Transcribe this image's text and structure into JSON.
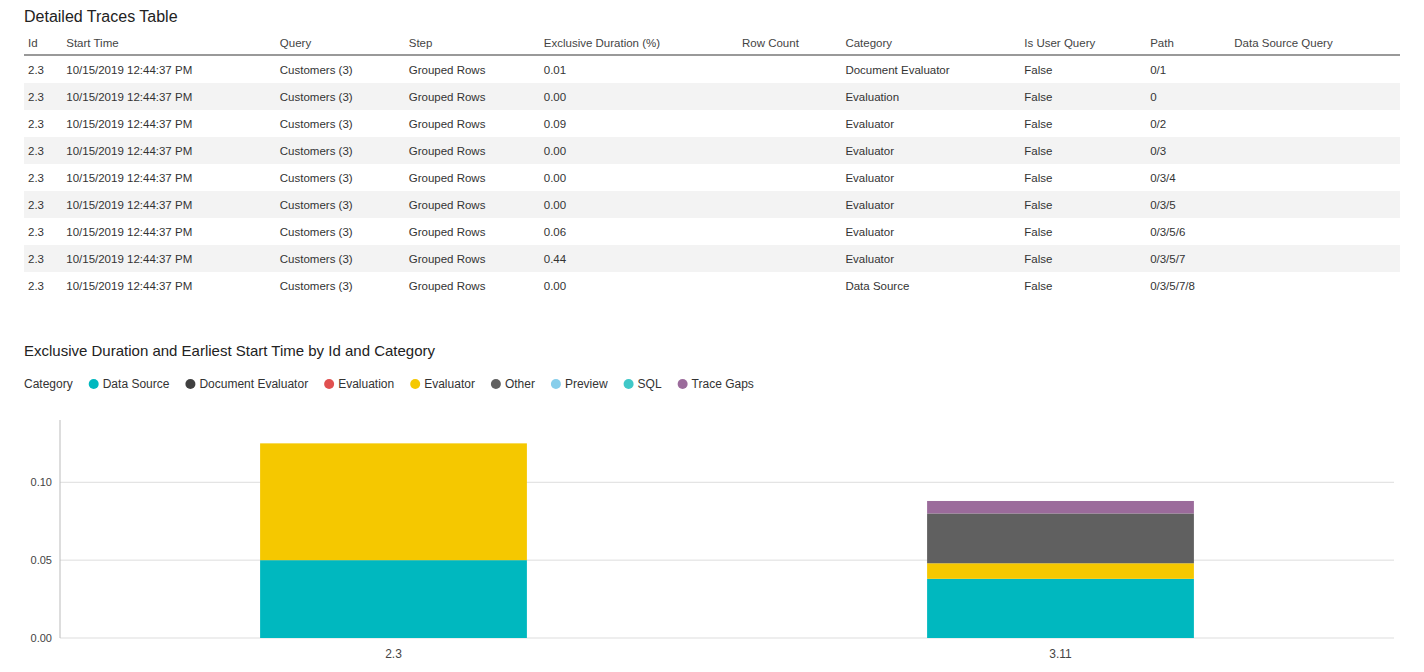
{
  "chart_data": [
    {
      "type": "table",
      "title": "Detailed Traces Table",
      "columns": [
        "Id",
        "Start Time",
        "Query",
        "Step",
        "Exclusive Duration (%)",
        "Row Count",
        "Category",
        "Is User Query",
        "Path",
        "Data Source Query"
      ],
      "rows": [
        [
          "2.3",
          "10/15/2019 12:44:37 PM",
          "Customers (3)",
          "Grouped Rows",
          "0.01",
          null,
          "Document Evaluator",
          "False",
          "0/1",
          null
        ],
        [
          "2.3",
          "10/15/2019 12:44:37 PM",
          "Customers (3)",
          "Grouped Rows",
          "0.00",
          null,
          "Evaluation",
          "False",
          "0",
          null
        ],
        [
          "2.3",
          "10/15/2019 12:44:37 PM",
          "Customers (3)",
          "Grouped Rows",
          "0.09",
          null,
          "Evaluator",
          "False",
          "0/2",
          null
        ],
        [
          "2.3",
          "10/15/2019 12:44:37 PM",
          "Customers (3)",
          "Grouped Rows",
          "0.00",
          null,
          "Evaluator",
          "False",
          "0/3",
          null
        ],
        [
          "2.3",
          "10/15/2019 12:44:37 PM",
          "Customers (3)",
          "Grouped Rows",
          "0.00",
          null,
          "Evaluator",
          "False",
          "0/3/4",
          null
        ],
        [
          "2.3",
          "10/15/2019 12:44:37 PM",
          "Customers (3)",
          "Grouped Rows",
          "0.00",
          null,
          "Evaluator",
          "False",
          "0/3/5",
          null
        ],
        [
          "2.3",
          "10/15/2019 12:44:37 PM",
          "Customers (3)",
          "Grouped Rows",
          "0.06",
          null,
          "Evaluator",
          "False",
          "0/3/5/6",
          null
        ],
        [
          "2.3",
          "10/15/2019 12:44:37 PM",
          "Customers (3)",
          "Grouped Rows",
          "0.44",
          null,
          "Evaluator",
          "False",
          "0/3/5/7",
          null
        ],
        [
          "2.3",
          "10/15/2019 12:44:37 PM",
          "Customers (3)",
          "Grouped Rows",
          "0.00",
          null,
          "Data Source",
          "False",
          "0/3/5/7/8",
          null
        ]
      ]
    },
    {
      "type": "bar",
      "stacked": true,
      "title": "Exclusive Duration and Earliest Start Time by Id and Category",
      "legend_title": "Category",
      "legend": "top",
      "categories": [
        "2.3",
        "3.11"
      ],
      "series": [
        {
          "name": "Data Source",
          "color": "#00B8BF",
          "values": [
            0.05,
            0.038
          ]
        },
        {
          "name": "Document Evaluator",
          "color": "#404040",
          "values": [
            0.0,
            0.0
          ]
        },
        {
          "name": "Evaluation",
          "color": "#E05050",
          "values": [
            0.0,
            0.0
          ]
        },
        {
          "name": "Evaluator",
          "color": "#F5C800",
          "values": [
            0.075,
            0.01
          ]
        },
        {
          "name": "Other",
          "color": "#606060",
          "values": [
            0.0,
            0.032
          ]
        },
        {
          "name": "Preview",
          "color": "#87CEEB",
          "values": [
            0.0,
            0.0
          ]
        },
        {
          "name": "SQL",
          "color": "#40C8C8",
          "values": [
            0.0,
            0.0
          ]
        },
        {
          "name": "Trace Gaps",
          "color": "#9B6B9B",
          "values": [
            0.0,
            0.008
          ]
        }
      ],
      "ylim": [
        0.0,
        0.14
      ],
      "yticks": [
        {
          "value": 0.0,
          "label": "0.00"
        },
        {
          "value": 0.05,
          "label": "0.05"
        },
        {
          "value": 0.1,
          "label": "0.10"
        }
      ],
      "grid": true
    }
  ]
}
